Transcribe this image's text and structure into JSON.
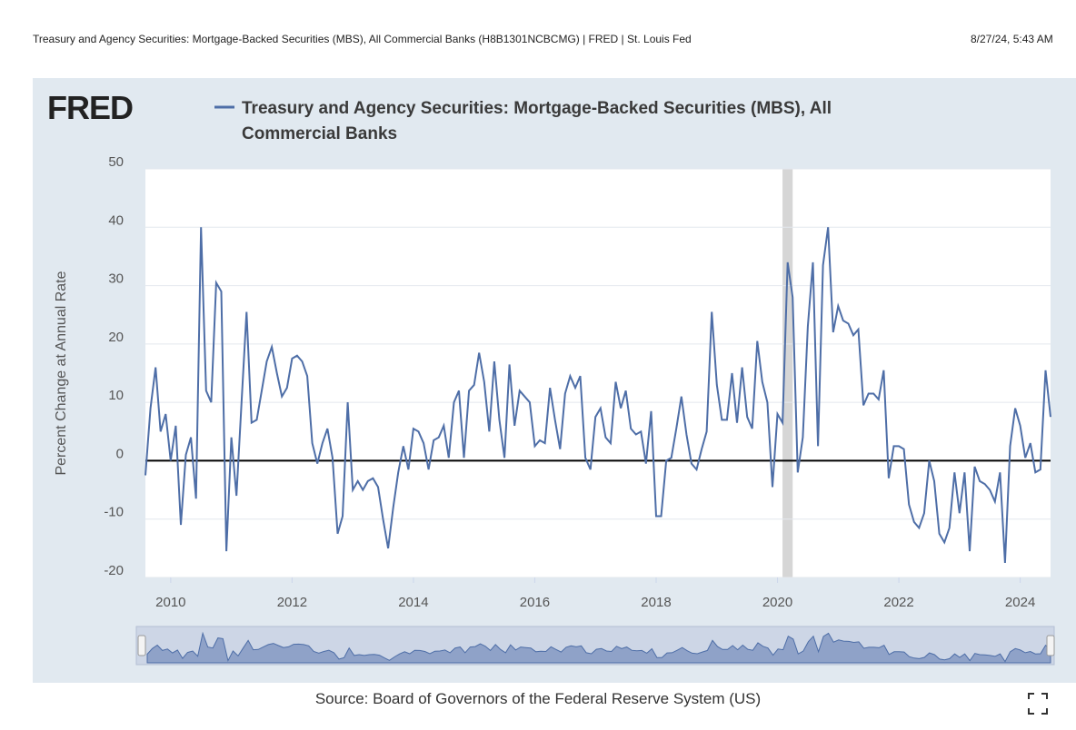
{
  "header": {
    "left": "Treasury and Agency Securities: Mortgage-Backed Securities (MBS), All Commercial Banks (H8B1301NCBCMG) | FRED | St. Louis Fed",
    "right": "8/27/24, 5:43 AM"
  },
  "logo": "FRED",
  "chart_data": {
    "type": "line",
    "y_label": "Percent Change at Annual Rate",
    "source": "Source: Board of Governors of the Federal Reserve System (US)",
    "xlim": [
      2009.583,
      2024.5
    ],
    "xticks": [
      2010,
      2012,
      2014,
      2016,
      2018,
      2020,
      2022,
      2024
    ],
    "ylim": [
      -20,
      50
    ],
    "yticks": [
      -20,
      -10,
      0,
      10,
      20,
      30,
      40,
      50
    ],
    "grid": true,
    "zero_line": true,
    "shaded_periods": [
      [
        2020.083,
        2020.25
      ]
    ],
    "x": [
      2009.583,
      2009.667,
      2009.75,
      2009.833,
      2009.917,
      2010,
      2010.083,
      2010.167,
      2010.25,
      2010.333,
      2010.417,
      2010.5,
      2010.583,
      2010.667,
      2010.75,
      2010.833,
      2010.917,
      2011,
      2011.083,
      2011.167,
      2011.25,
      2011.333,
      2011.417,
      2011.5,
      2011.583,
      2011.667,
      2011.75,
      2011.833,
      2011.917,
      2012,
      2012.083,
      2012.167,
      2012.25,
      2012.333,
      2012.417,
      2012.5,
      2012.583,
      2012.667,
      2012.75,
      2012.833,
      2012.917,
      2013,
      2013.083,
      2013.167,
      2013.25,
      2013.333,
      2013.417,
      2013.5,
      2013.583,
      2013.667,
      2013.75,
      2013.833,
      2013.917,
      2014,
      2014.083,
      2014.167,
      2014.25,
      2014.333,
      2014.417,
      2014.5,
      2014.583,
      2014.667,
      2014.75,
      2014.833,
      2014.917,
      2015,
      2015.083,
      2015.167,
      2015.25,
      2015.333,
      2015.417,
      2015.5,
      2015.583,
      2015.667,
      2015.75,
      2015.833,
      2015.917,
      2016,
      2016.083,
      2016.167,
      2016.25,
      2016.333,
      2016.417,
      2016.5,
      2016.583,
      2016.667,
      2016.75,
      2016.833,
      2016.917,
      2017,
      2017.083,
      2017.167,
      2017.25,
      2017.333,
      2017.417,
      2017.5,
      2017.583,
      2017.667,
      2017.75,
      2017.833,
      2017.917,
      2018,
      2018.083,
      2018.167,
      2018.25,
      2018.333,
      2018.417,
      2018.5,
      2018.583,
      2018.667,
      2018.75,
      2018.833,
      2018.917,
      2019,
      2019.083,
      2019.167,
      2019.25,
      2019.333,
      2019.417,
      2019.5,
      2019.583,
      2019.667,
      2019.75,
      2019.833,
      2019.917,
      2020,
      2020.083,
      2020.167,
      2020.25,
      2020.333,
      2020.417,
      2020.5,
      2020.583,
      2020.667,
      2020.75,
      2020.833,
      2020.917,
      2021,
      2021.083,
      2021.167,
      2021.25,
      2021.333,
      2021.417,
      2021.5,
      2021.583,
      2021.667,
      2021.75,
      2021.833,
      2021.917,
      2022,
      2022.083,
      2022.167,
      2022.25,
      2022.333,
      2022.417,
      2022.5,
      2022.583,
      2022.667,
      2022.75,
      2022.833,
      2022.917,
      2023,
      2023.083,
      2023.167,
      2023.25,
      2023.333,
      2023.417,
      2023.5,
      2023.583,
      2023.667,
      2023.75,
      2023.833,
      2023.917,
      2024,
      2024.083,
      2024.167,
      2024.25,
      2024.333,
      2024.417,
      2024.5
    ],
    "series": [
      {
        "name": "Treasury and Agency Securities: Mortgage-Backed Securities (MBS), All Commercial Banks",
        "color": "#4e6ea7",
        "values": [
          -2.5,
          9,
          16,
          5,
          8,
          0,
          6,
          -11,
          1,
          4,
          -6.5,
          40,
          12,
          10,
          30.5,
          29,
          -15.5,
          4,
          -6,
          10,
          25.5,
          6.5,
          7,
          12,
          17,
          19.5,
          15,
          11,
          12.5,
          17.5,
          18,
          17,
          14.5,
          3,
          -0.5,
          3,
          5.5,
          0.5,
          -12.5,
          -9.5,
          10,
          -5,
          -3.5,
          -5,
          -3.5,
          -3,
          -4.5,
          -10,
          -15,
          -8,
          -2,
          2.5,
          -1.5,
          5.5,
          5,
          3,
          -1.5,
          3.5,
          4,
          6,
          0.5,
          10,
          12,
          0.5,
          12,
          13,
          18.5,
          13.5,
          5,
          17,
          7,
          0.5,
          16.5,
          6,
          12,
          11,
          10,
          2.5,
          3.5,
          3,
          12.5,
          7,
          2,
          11.5,
          14.5,
          12.5,
          14.5,
          0.5,
          -1.5,
          7.5,
          9,
          4,
          3,
          13.5,
          9,
          12,
          5.5,
          4.5,
          5,
          -0.5,
          8.5,
          -9.5,
          -9.5,
          0,
          0.5,
          5.5,
          11,
          4.5,
          -0.5,
          -1.5,
          2,
          5,
          25.5,
          13,
          7,
          7,
          15,
          6.5,
          16,
          7.5,
          5.5,
          20.5,
          13.5,
          10,
          -4.5,
          8,
          6.5,
          34,
          28,
          -2,
          4,
          23,
          34,
          2.5,
          33.5,
          40,
          22,
          26.5,
          24,
          23.5,
          21.5,
          22.5,
          9.5,
          11.5,
          11.5,
          10.5,
          15.5,
          -3,
          2.5,
          2.5,
          2,
          -7.5,
          -10.5,
          -11.5,
          -9,
          0,
          -3.5,
          -12.5,
          -14,
          -11.5,
          -2,
          -9,
          -2,
          -15.5,
          -1,
          -3.5,
          -4,
          -5,
          -7,
          -2,
          -17.5,
          2.5,
          9,
          6,
          0.5,
          3,
          -2,
          -1.5,
          15.5,
          7.5
        ]
      }
    ]
  }
}
